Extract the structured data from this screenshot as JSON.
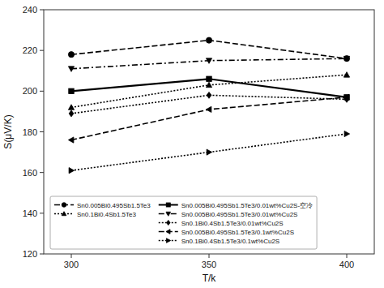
{
  "chart_data": {
    "type": "line",
    "x": [
      300,
      350,
      400
    ],
    "series": [
      {
        "name": "Sn0.005Bi0.495Sb1.5Te3",
        "color": "#000000",
        "marker": "circle",
        "line_style": "dashed",
        "values": [
          218,
          225,
          216
        ]
      },
      {
        "name": "Sn0.005Bi0.495Sb1.5Te3/0.01wt%Cu2S-空冷",
        "color": "#000000",
        "marker": "square",
        "line_style": "solid",
        "values": [
          200,
          206,
          197
        ]
      },
      {
        "name": "Sn0.005Bi0.495Sb1.5Te3/0.01wt%Cu2S",
        "color": "#000000",
        "marker": "triangle-down",
        "line_style": "dashdot",
        "values": [
          211,
          215,
          216
        ]
      },
      {
        "name": "Sn0.1Bi0.4Sb1.5Te3",
        "color": "#000000",
        "marker": "triangle-up",
        "line_style": "dotted",
        "values": [
          192,
          203,
          208
        ]
      },
      {
        "name": "Sn0.1Bi0.4Sb1.5Te3/0.01wt%Cu2S",
        "color": "#000000",
        "marker": "diamond",
        "line_style": "dotted",
        "values": [
          189,
          198,
          196
        ]
      },
      {
        "name": "Sn0.005Bi0.495Sb1.5Te3/0.1wt%Cu2S",
        "color": "#000000",
        "marker": "triangle-left",
        "line_style": "dashed",
        "values": [
          176,
          191,
          197
        ]
      },
      {
        "name": "Sn0.1Bi0.4Sb1.5Te3/0.1wt%Cu2S",
        "color": "#000000",
        "marker": "triangle-right",
        "line_style": "dotted",
        "values": [
          161,
          170,
          179
        ]
      }
    ],
    "x_label": "T/k",
    "y_label": "S(μV/K)",
    "xlim": [
      290,
      410
    ],
    "ylim": [
      120,
      240
    ],
    "xticks": [
      300,
      350,
      400
    ],
    "yticks": [
      120,
      140,
      160,
      180,
      200,
      220,
      240
    ],
    "grid": false,
    "legend": "lower left"
  }
}
